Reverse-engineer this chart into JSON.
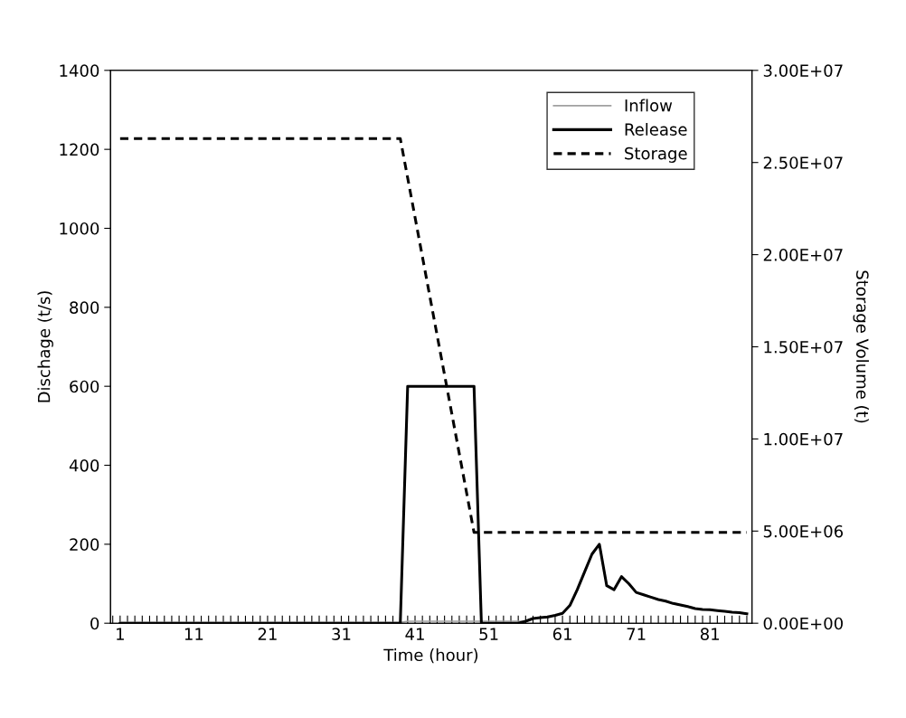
{
  "chart_data": {
    "type": "line",
    "xlabel": "Time (hour)",
    "ylabel": "Dischage (t/s)",
    "y2label": "Storage Volume (t)",
    "x": [
      1,
      2,
      3,
      4,
      5,
      6,
      7,
      8,
      9,
      10,
      11,
      12,
      13,
      14,
      15,
      16,
      17,
      18,
      19,
      20,
      21,
      22,
      23,
      24,
      25,
      26,
      27,
      28,
      29,
      30,
      31,
      32,
      33,
      34,
      35,
      36,
      37,
      38,
      39,
      40,
      41,
      42,
      43,
      44,
      45,
      46,
      47,
      48,
      49,
      50,
      51,
      52,
      53,
      54,
      55,
      56,
      57,
      58,
      59,
      60,
      61,
      62,
      63,
      64,
      65,
      66,
      67,
      68,
      69,
      70,
      71,
      72,
      73,
      74,
      75,
      76,
      77,
      78,
      79,
      80,
      81,
      82,
      83,
      84,
      85,
      86
    ],
    "xlim": [
      -0.3,
      86.7
    ],
    "xticks": [
      {
        "value": 0,
        "label": null
      },
      {
        "value": 1,
        "label": "1"
      },
      {
        "value": 2,
        "label": null
      },
      {
        "value": 3,
        "label": null
      },
      {
        "value": 4,
        "label": null
      },
      {
        "value": 5,
        "label": null
      },
      {
        "value": 6,
        "label": null
      },
      {
        "value": 7,
        "label": null
      },
      {
        "value": 8,
        "label": null
      },
      {
        "value": 9,
        "label": null
      },
      {
        "value": 10,
        "label": null
      },
      {
        "value": 11,
        "label": "11"
      },
      {
        "value": 12,
        "label": null
      },
      {
        "value": 13,
        "label": null
      },
      {
        "value": 14,
        "label": null
      },
      {
        "value": 15,
        "label": null
      },
      {
        "value": 16,
        "label": null
      },
      {
        "value": 17,
        "label": null
      },
      {
        "value": 18,
        "label": null
      },
      {
        "value": 19,
        "label": null
      },
      {
        "value": 20,
        "label": null
      },
      {
        "value": 21,
        "label": "21"
      },
      {
        "value": 22,
        "label": null
      },
      {
        "value": 23,
        "label": null
      },
      {
        "value": 24,
        "label": null
      },
      {
        "value": 25,
        "label": null
      },
      {
        "value": 26,
        "label": null
      },
      {
        "value": 27,
        "label": null
      },
      {
        "value": 28,
        "label": null
      },
      {
        "value": 29,
        "label": null
      },
      {
        "value": 30,
        "label": null
      },
      {
        "value": 31,
        "label": "31"
      },
      {
        "value": 32,
        "label": null
      },
      {
        "value": 33,
        "label": null
      },
      {
        "value": 34,
        "label": null
      },
      {
        "value": 35,
        "label": null
      },
      {
        "value": 36,
        "label": null
      },
      {
        "value": 37,
        "label": null
      },
      {
        "value": 38,
        "label": null
      },
      {
        "value": 39,
        "label": null
      },
      {
        "value": 40,
        "label": null
      },
      {
        "value": 41,
        "label": "41"
      },
      {
        "value": 42,
        "label": null
      },
      {
        "value": 43,
        "label": null
      },
      {
        "value": 44,
        "label": null
      },
      {
        "value": 45,
        "label": null
      },
      {
        "value": 46,
        "label": null
      },
      {
        "value": 47,
        "label": null
      },
      {
        "value": 48,
        "label": null
      },
      {
        "value": 49,
        "label": null
      },
      {
        "value": 50,
        "label": null
      },
      {
        "value": 51,
        "label": "51"
      },
      {
        "value": 52,
        "label": null
      },
      {
        "value": 53,
        "label": null
      },
      {
        "value": 54,
        "label": null
      },
      {
        "value": 55,
        "label": null
      },
      {
        "value": 56,
        "label": null
      },
      {
        "value": 57,
        "label": null
      },
      {
        "value": 58,
        "label": null
      },
      {
        "value": 59,
        "label": null
      },
      {
        "value": 60,
        "label": null
      },
      {
        "value": 61,
        "label": "61"
      },
      {
        "value": 62,
        "label": null
      },
      {
        "value": 63,
        "label": null
      },
      {
        "value": 64,
        "label": null
      },
      {
        "value": 65,
        "label": null
      },
      {
        "value": 66,
        "label": null
      },
      {
        "value": 67,
        "label": null
      },
      {
        "value": 68,
        "label": null
      },
      {
        "value": 69,
        "label": null
      },
      {
        "value": 70,
        "label": null
      },
      {
        "value": 71,
        "label": "71"
      },
      {
        "value": 72,
        "label": null
      },
      {
        "value": 73,
        "label": null
      },
      {
        "value": 74,
        "label": null
      },
      {
        "value": 75,
        "label": null
      },
      {
        "value": 76,
        "label": null
      },
      {
        "value": 77,
        "label": null
      },
      {
        "value": 78,
        "label": null
      },
      {
        "value": 79,
        "label": null
      },
      {
        "value": 80,
        "label": null
      },
      {
        "value": 81,
        "label": "81"
      },
      {
        "value": 82,
        "label": null
      },
      {
        "value": 83,
        "label": null
      },
      {
        "value": 84,
        "label": null
      },
      {
        "value": 85,
        "label": null
      },
      {
        "value": 86,
        "label": null
      }
    ],
    "ylim": [
      0,
      1400
    ],
    "yticks": [
      0,
      200,
      400,
      600,
      800,
      1000,
      1200,
      1400
    ],
    "y2lim": [
      0,
      30000000
    ],
    "y2ticks": [
      {
        "value": 0,
        "label": "0.00E+00"
      },
      {
        "value": 5000000,
        "label": "5.00E+06"
      },
      {
        "value": 10000000,
        "label": "1.00E+07"
      },
      {
        "value": 15000000,
        "label": "1.50E+07"
      },
      {
        "value": 20000000,
        "label": "2.00E+07"
      },
      {
        "value": 25000000,
        "label": "2.50E+07"
      },
      {
        "value": 30000000,
        "label": "3.00E+07"
      }
    ],
    "legend": "top right",
    "grid": false,
    "marker": "none",
    "series": [
      {
        "name": "Inflow",
        "color": "#a0a0a0",
        "line_style": "solid",
        "values": [
          2,
          2,
          2,
          2,
          2,
          2,
          2,
          2,
          2,
          2,
          2,
          2,
          2,
          2,
          2,
          2,
          2,
          2,
          2,
          2,
          2,
          2,
          2,
          2,
          2,
          2,
          2,
          2,
          2,
          2,
          2,
          2,
          2,
          2,
          2,
          2,
          2,
          2,
          2,
          5,
          5,
          5,
          5,
          5,
          5,
          5,
          5,
          5,
          5,
          5,
          5,
          5,
          5,
          5,
          5,
          5,
          12,
          14,
          16,
          20,
          25,
          45,
          85,
          130,
          175,
          200,
          95,
          85,
          118,
          100,
          78,
          72,
          66,
          60,
          56,
          50,
          46,
          42,
          37,
          35,
          34,
          32,
          30,
          28,
          27,
          24
        ]
      },
      {
        "name": "Release",
        "color": "#000000",
        "line_style": "solid",
        "values": [
          0,
          0,
          0,
          0,
          0,
          0,
          0,
          0,
          0,
          0,
          0,
          0,
          0,
          0,
          0,
          0,
          0,
          0,
          0,
          0,
          0,
          0,
          0,
          0,
          0,
          0,
          0,
          0,
          0,
          0,
          0,
          0,
          0,
          0,
          0,
          0,
          0,
          0,
          0,
          600,
          600,
          600,
          600,
          600,
          600,
          600,
          600,
          600,
          600,
          0,
          0,
          0,
          0,
          0,
          0,
          5,
          12,
          14,
          16,
          20,
          25,
          45,
          85,
          130,
          175,
          200,
          95,
          85,
          118,
          100,
          78,
          72,
          66,
          60,
          56,
          50,
          46,
          42,
          37,
          35,
          34,
          32,
          30,
          28,
          27,
          24
        ]
      },
      {
        "name": "Storage",
        "color": "#000000",
        "line_style": "dashed",
        "axis": "y2",
        "x": [
          1,
          39,
          49,
          86
        ],
        "values": [
          26300000,
          26300000,
          4930000,
          4930000
        ]
      }
    ]
  }
}
